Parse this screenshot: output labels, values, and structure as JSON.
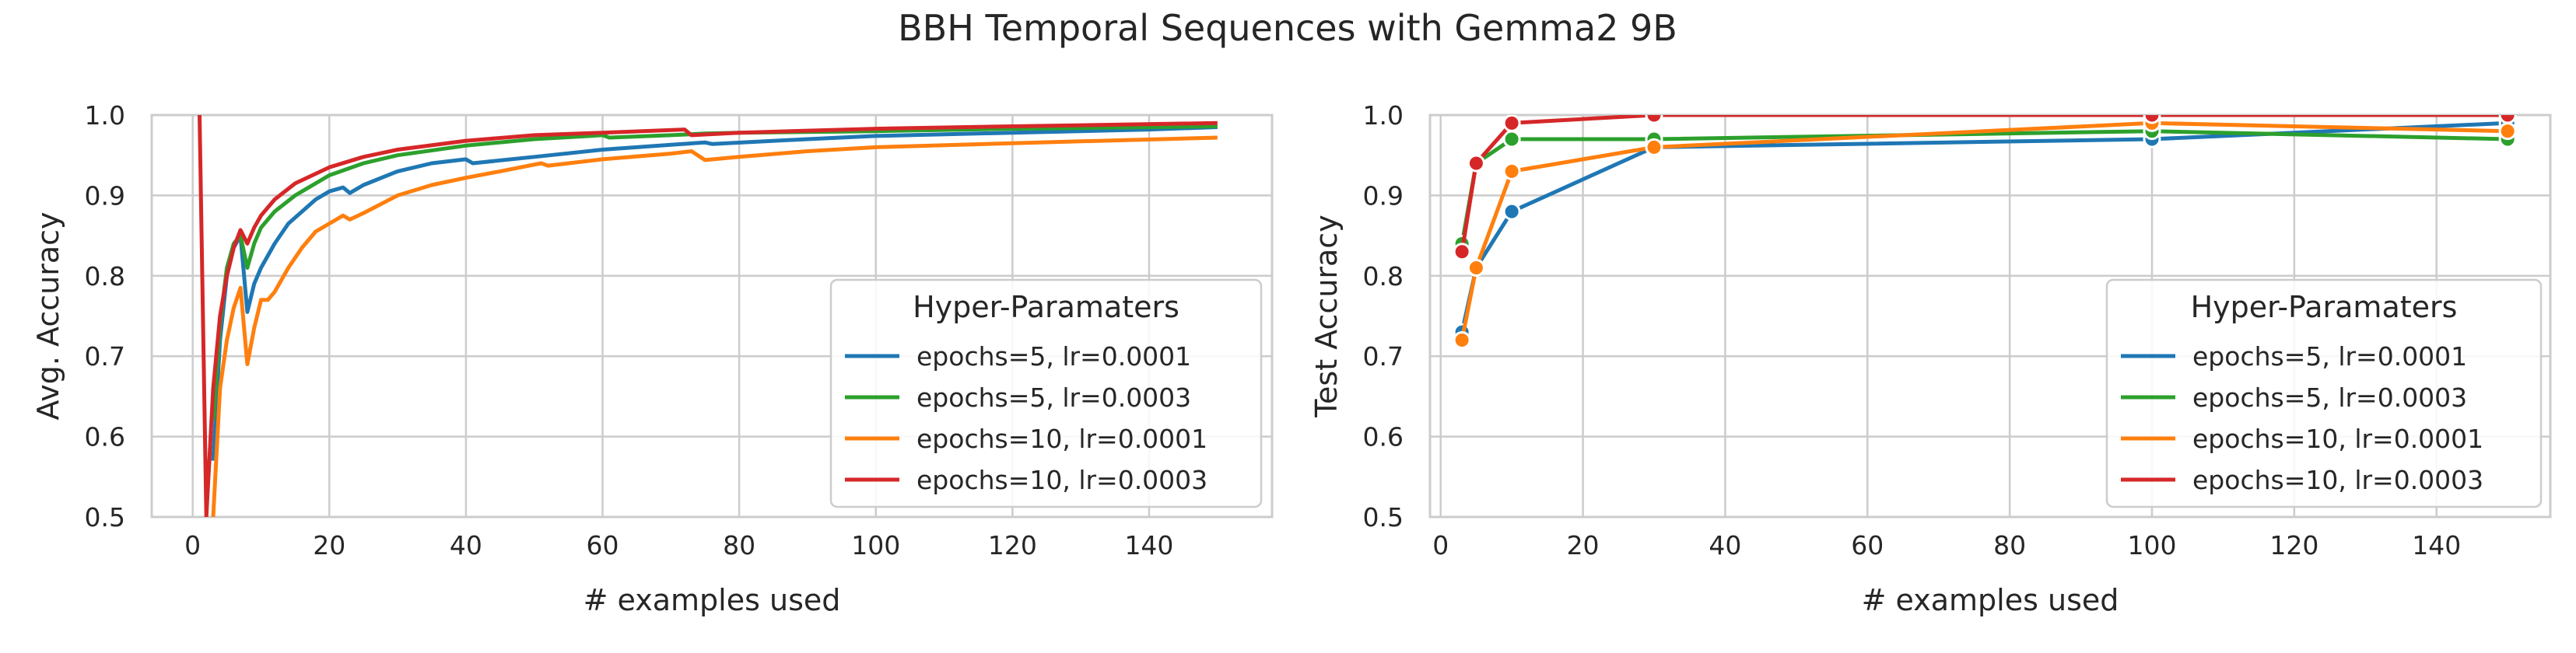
{
  "figure": {
    "title": "BBH Temporal Sequences with Gemma2 9B"
  },
  "chart_data": [
    {
      "type": "line",
      "xlabel": "# examples used",
      "ylabel": "Avg. Accuracy",
      "xlim": [
        -6,
        158
      ],
      "ylim": [
        0.5,
        1.0
      ],
      "xticks": [
        0,
        20,
        40,
        60,
        80,
        100,
        120,
        140
      ],
      "yticks": [
        0.5,
        0.6,
        0.7,
        0.8,
        0.9,
        1.0
      ],
      "ytick_labels": [
        "0.5",
        "0.6",
        "0.7",
        "0.8",
        "0.9",
        "1.0"
      ],
      "grid": true,
      "markers": false,
      "legend": {
        "title": "Hyper-Paramaters",
        "placement": "lower-right"
      },
      "series": [
        {
          "name": "epochs=5, lr=0.0001",
          "color": "#1f77b4",
          "x": [
            3,
            4,
            5,
            6,
            7,
            8,
            9,
            10,
            12,
            14,
            16,
            18,
            20,
            22,
            23,
            25,
            30,
            35,
            40,
            41,
            50,
            60,
            70,
            75,
            76,
            90,
            100,
            120,
            140,
            150
          ],
          "y": [
            0.57,
            0.72,
            0.8,
            0.835,
            0.85,
            0.755,
            0.79,
            0.81,
            0.84,
            0.865,
            0.88,
            0.895,
            0.905,
            0.91,
            0.903,
            0.913,
            0.93,
            0.94,
            0.945,
            0.94,
            0.948,
            0.957,
            0.963,
            0.966,
            0.964,
            0.97,
            0.974,
            0.978,
            0.982,
            0.985
          ]
        },
        {
          "name": "epochs=5, lr=0.0003",
          "color": "#2ca02c",
          "x": [
            3,
            4,
            5,
            6,
            7,
            8,
            9,
            10,
            12,
            15,
            20,
            25,
            30,
            40,
            50,
            60,
            61,
            70,
            75,
            80,
            100,
            120,
            150
          ],
          "y": [
            0.62,
            0.74,
            0.81,
            0.84,
            0.85,
            0.81,
            0.84,
            0.86,
            0.88,
            0.9,
            0.925,
            0.94,
            0.95,
            0.962,
            0.97,
            0.975,
            0.972,
            0.975,
            0.977,
            0.978,
            0.98,
            0.983,
            0.986
          ]
        },
        {
          "name": "epochs=10, lr=0.0001",
          "color": "#ff7f0e",
          "x": [
            3,
            4,
            5,
            6,
            7,
            8,
            9,
            10,
            11,
            12,
            14,
            16,
            18,
            20,
            22,
            23,
            25,
            30,
            35,
            40,
            45,
            51,
            52,
            60,
            70,
            73,
            75,
            80,
            90,
            100,
            120,
            150
          ],
          "y": [
            0.5,
            0.66,
            0.72,
            0.76,
            0.785,
            0.69,
            0.735,
            0.77,
            0.77,
            0.78,
            0.81,
            0.835,
            0.855,
            0.865,
            0.875,
            0.87,
            0.878,
            0.9,
            0.913,
            0.922,
            0.93,
            0.94,
            0.937,
            0.945,
            0.952,
            0.955,
            0.944,
            0.948,
            0.955,
            0.96,
            0.965,
            0.972
          ]
        },
        {
          "name": "epochs=10, lr=0.0003",
          "color": "#d62728",
          "x": [
            1,
            2,
            3,
            4,
            5,
            6,
            7,
            8,
            9,
            10,
            12,
            15,
            20,
            25,
            30,
            40,
            50,
            60,
            72,
            73,
            80,
            100,
            120,
            150
          ],
          "y": [
            1.0,
            0.5,
            0.66,
            0.75,
            0.8,
            0.835,
            0.857,
            0.84,
            0.86,
            0.875,
            0.895,
            0.915,
            0.935,
            0.948,
            0.957,
            0.968,
            0.975,
            0.978,
            0.982,
            0.975,
            0.978,
            0.983,
            0.986,
            0.99
          ]
        }
      ]
    },
    {
      "type": "line",
      "xlabel": "# examples used",
      "ylabel": "Test Accuracy",
      "xlim": [
        -1.5,
        156
      ],
      "ylim": [
        0.5,
        1.0
      ],
      "xticks": [
        0,
        20,
        40,
        60,
        80,
        100,
        120,
        140
      ],
      "yticks": [
        0.5,
        0.6,
        0.7,
        0.8,
        0.9,
        1.0
      ],
      "ytick_labels": [
        "0.5",
        "0.6",
        "0.7",
        "0.8",
        "0.9",
        "1.0"
      ],
      "grid": true,
      "markers": true,
      "legend": {
        "title": "Hyper-Paramaters",
        "placement": "lower-right"
      },
      "series": [
        {
          "name": "epochs=5, lr=0.0001",
          "color": "#1f77b4",
          "x": [
            3,
            5,
            10,
            30,
            100,
            150
          ],
          "y": [
            0.73,
            0.81,
            0.88,
            0.96,
            0.97,
            0.99
          ]
        },
        {
          "name": "epochs=5, lr=0.0003",
          "color": "#2ca02c",
          "x": [
            3,
            5,
            10,
            30,
            100,
            150
          ],
          "y": [
            0.84,
            0.94,
            0.97,
            0.97,
            0.98,
            0.97
          ]
        },
        {
          "name": "epochs=10, lr=0.0001",
          "color": "#ff7f0e",
          "x": [
            3,
            5,
            10,
            30,
            100,
            150
          ],
          "y": [
            0.72,
            0.81,
            0.93,
            0.96,
            0.99,
            0.98
          ]
        },
        {
          "name": "epochs=10, lr=0.0003",
          "color": "#d62728",
          "x": [
            3,
            5,
            10,
            30,
            100,
            150
          ],
          "y": [
            0.83,
            0.94,
            0.99,
            1.0,
            1.0,
            1.0
          ]
        }
      ]
    }
  ]
}
